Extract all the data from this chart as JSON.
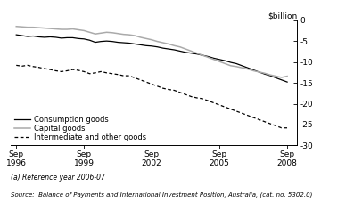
{
  "ylabel": "$billion",
  "ylim": [
    -30,
    0
  ],
  "yticks": [
    0,
    -5,
    -10,
    -15,
    -20,
    -25,
    -30
  ],
  "xlim_start": 1996.5,
  "xlim_end": 2009.2,
  "xtick_years": [
    1996,
    1999,
    2002,
    2005,
    2008
  ],
  "xtick_labels": [
    "Sep\n1996",
    "Sep\n1999",
    "Sep\n2002",
    "Sep\n2005",
    "Sep\n2008"
  ],
  "footnote": "(a) Reference year 2006-07",
  "source": "Source:  Balance of Payments and International Investment Position, Australia, (cat. no. 5302.0)",
  "line_color_consumption": "#000000",
  "line_color_capital": "#aaaaaa",
  "line_color_intermediate": "#000000",
  "background_color": "#ffffff",
  "consumption_goods": {
    "x": [
      1996.75,
      1997.0,
      1997.25,
      1997.5,
      1997.75,
      1998.0,
      1998.25,
      1998.5,
      1998.75,
      1999.0,
      1999.25,
      1999.5,
      1999.75,
      2000.0,
      2000.25,
      2000.5,
      2000.75,
      2001.0,
      2001.25,
      2001.5,
      2001.75,
      2002.0,
      2002.25,
      2002.5,
      2002.75,
      2003.0,
      2003.25,
      2003.5,
      2003.75,
      2004.0,
      2004.25,
      2004.5,
      2004.75,
      2005.0,
      2005.25,
      2005.5,
      2005.75,
      2006.0,
      2006.25,
      2006.5,
      2006.75,
      2007.0,
      2007.25,
      2007.5,
      2007.75,
      2008.0,
      2008.25,
      2008.5,
      2008.75
    ],
    "y": [
      -3.5,
      -3.7,
      -3.9,
      -3.8,
      -4.0,
      -4.1,
      -4.0,
      -4.1,
      -4.3,
      -4.2,
      -4.2,
      -4.4,
      -4.5,
      -4.8,
      -5.3,
      -5.1,
      -5.0,
      -5.1,
      -5.3,
      -5.4,
      -5.5,
      -5.7,
      -5.9,
      -6.1,
      -6.2,
      -6.4,
      -6.7,
      -6.9,
      -7.1,
      -7.4,
      -7.7,
      -7.9,
      -8.1,
      -8.4,
      -8.7,
      -9.1,
      -9.4,
      -9.7,
      -10.1,
      -10.4,
      -10.9,
      -11.4,
      -11.9,
      -12.4,
      -12.9,
      -13.3,
      -13.8,
      -14.3,
      -14.8
    ]
  },
  "capital_goods": {
    "x": [
      1996.75,
      1997.0,
      1997.25,
      1997.5,
      1997.75,
      1998.0,
      1998.25,
      1998.5,
      1998.75,
      1999.0,
      1999.25,
      1999.5,
      1999.75,
      2000.0,
      2000.25,
      2000.5,
      2000.75,
      2001.0,
      2001.25,
      2001.5,
      2001.75,
      2002.0,
      2002.25,
      2002.5,
      2002.75,
      2003.0,
      2003.25,
      2003.5,
      2003.75,
      2004.0,
      2004.25,
      2004.5,
      2004.75,
      2005.0,
      2005.25,
      2005.5,
      2005.75,
      2006.0,
      2006.25,
      2006.5,
      2006.75,
      2007.0,
      2007.25,
      2007.5,
      2007.75,
      2008.0,
      2008.25,
      2008.5,
      2008.75
    ],
    "y": [
      -1.5,
      -1.6,
      -1.7,
      -1.7,
      -1.8,
      -1.9,
      -2.0,
      -2.1,
      -2.2,
      -2.2,
      -2.1,
      -2.3,
      -2.5,
      -2.9,
      -3.3,
      -3.1,
      -2.9,
      -3.0,
      -3.2,
      -3.4,
      -3.5,
      -3.7,
      -4.1,
      -4.4,
      -4.7,
      -5.1,
      -5.4,
      -5.7,
      -6.1,
      -6.4,
      -6.9,
      -7.4,
      -7.9,
      -8.4,
      -8.9,
      -9.4,
      -9.9,
      -10.4,
      -10.9,
      -11.1,
      -11.4,
      -11.7,
      -12.1,
      -12.4,
      -12.7,
      -13.1,
      -13.4,
      -13.7,
      -13.4
    ]
  },
  "intermediate_goods": {
    "x": [
      1996.75,
      1997.0,
      1997.25,
      1997.5,
      1997.75,
      1998.0,
      1998.25,
      1998.5,
      1998.75,
      1999.0,
      1999.25,
      1999.5,
      1999.75,
      2000.0,
      2000.25,
      2000.5,
      2000.75,
      2001.0,
      2001.25,
      2001.5,
      2001.75,
      2002.0,
      2002.25,
      2002.5,
      2002.75,
      2003.0,
      2003.25,
      2003.5,
      2003.75,
      2004.0,
      2004.25,
      2004.5,
      2004.75,
      2005.0,
      2005.25,
      2005.5,
      2005.75,
      2006.0,
      2006.25,
      2006.5,
      2006.75,
      2007.0,
      2007.25,
      2007.5,
      2007.75,
      2008.0,
      2008.25,
      2008.5,
      2008.75
    ],
    "y": [
      -10.8,
      -11.0,
      -10.8,
      -11.1,
      -11.3,
      -11.6,
      -11.8,
      -12.1,
      -12.3,
      -12.1,
      -11.8,
      -12.0,
      -12.3,
      -12.8,
      -12.6,
      -12.3,
      -12.6,
      -12.8,
      -13.0,
      -13.3,
      -13.3,
      -13.8,
      -14.3,
      -14.8,
      -15.3,
      -15.8,
      -16.3,
      -16.6,
      -16.8,
      -17.3,
      -17.8,
      -18.3,
      -18.6,
      -18.8,
      -19.3,
      -19.8,
      -20.3,
      -20.8,
      -21.3,
      -21.8,
      -22.3,
      -22.8,
      -23.3,
      -23.8,
      -24.3,
      -24.8,
      -25.3,
      -25.8,
      -25.8
    ]
  }
}
